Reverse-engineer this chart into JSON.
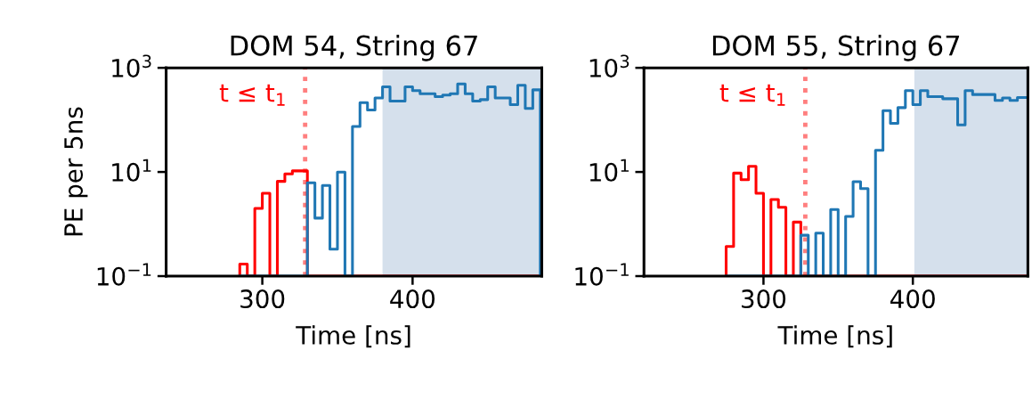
{
  "chart_data": [
    {
      "type": "histogram",
      "title": "DOM 54, String 67",
      "xlabel": "Time [ns]",
      "ylabel": "PE per 5ns",
      "log": "y",
      "xlim": [
        236,
        486
      ],
      "xticks": [
        300,
        400
      ],
      "ylim": [
        0.1,
        1000
      ],
      "yticks": [
        {
          "value": 0.1,
          "label": "10$^{−1}$"
        },
        {
          "value": 10,
          "label": "10$^{1}$"
        },
        {
          "value": 1000,
          "label": "10$^{3}$"
        }
      ],
      "bins": [
        285,
        290,
        295,
        300,
        305,
        310,
        315,
        320,
        325,
        330,
        335,
        340,
        345,
        350,
        355,
        360,
        365,
        370,
        375,
        380,
        385,
        390,
        395,
        400,
        405,
        410,
        415,
        420,
        425,
        430,
        435,
        440,
        445,
        450,
        455,
        460,
        465,
        470,
        475,
        480,
        485
      ],
      "series": [
        {
          "color": "#ff0000",
          "values": [
            0.17,
            null,
            2.0,
            3.9,
            null,
            6.6,
            9.2,
            10.5,
            10.5,
            null,
            null,
            null,
            null,
            null,
            null,
            null,
            null,
            null,
            null,
            null,
            null,
            null,
            null,
            null,
            null,
            null,
            null,
            null,
            null,
            null,
            null,
            null,
            null,
            null,
            null,
            null,
            null,
            null,
            null,
            null
          ]
        },
        {
          "color": "#1f77b4",
          "values": [
            null,
            null,
            null,
            null,
            null,
            null,
            null,
            null,
            null,
            6.2,
            1.3,
            5.5,
            0.33,
            9.9,
            null,
            75,
            215,
            155,
            263,
            432,
            230,
            230,
            432,
            365,
            319,
            319,
            280,
            300,
            319,
            492,
            319,
            230,
            245,
            432,
            263,
            263,
            196,
            461,
            166,
            378
          ]
        }
      ],
      "ref_lines": [
        {
          "axis": "x",
          "value": 328.5,
          "label": "t ≤ t$_{1}$",
          "color": "#ff7f7f",
          "line_style": "dotted"
        }
      ],
      "bands": [
        {
          "axis": "x",
          "from": 380,
          "to": 486,
          "color": "#d5e0ec"
        }
      ]
    },
    {
      "type": "histogram",
      "title": "DOM 55, String 67",
      "xlabel": "Time [ns]",
      "log": "y",
      "xlim": [
        220,
        477
      ],
      "xticks": [
        300,
        400
      ],
      "ylim": [
        0.1,
        1000
      ],
      "yticks": [
        {
          "value": 0.1,
          "label": "10$^{−1}$"
        },
        {
          "value": 10,
          "label": "10$^{1}$"
        },
        {
          "value": 1000,
          "label": "10$^{3}$"
        }
      ],
      "bins": [
        275,
        280,
        285,
        290,
        295,
        300,
        305,
        310,
        315,
        320,
        325,
        330,
        335,
        340,
        345,
        350,
        355,
        360,
        365,
        370,
        375,
        380,
        385,
        390,
        395,
        400,
        405,
        410,
        415,
        420,
        425,
        430,
        435,
        440,
        445,
        450,
        455,
        460,
        465,
        470,
        475,
        480
      ],
      "series": [
        {
          "color": "#ff0000",
          "values": [
            0.37,
            9.5,
            7.1,
            12.8,
            3.9,
            null,
            2.95,
            2.1,
            null,
            1.09,
            null,
            null,
            null,
            null,
            null,
            null,
            null,
            null,
            null,
            null,
            null,
            null,
            null,
            null,
            null,
            null,
            null,
            null,
            null,
            null,
            null,
            null,
            null,
            null,
            null,
            null,
            null,
            null,
            null,
            null,
            null
          ]
        },
        {
          "color": "#1f77b4",
          "values": [
            null,
            null,
            null,
            null,
            null,
            null,
            null,
            null,
            null,
            null,
            0.61,
            null,
            0.67,
            null,
            1.9,
            null,
            1.4,
            6.5,
            4.8,
            null,
            26,
            150,
            86,
            172,
            365,
            196,
            365,
            280,
            280,
            255,
            255,
            80,
            365,
            307,
            307,
            307,
            236,
            263,
            236,
            270,
            270
          ]
        }
      ],
      "ref_lines": [
        {
          "axis": "x",
          "value": 328,
          "label": "t ≤ t$_{1}$",
          "color": "#ff7f7f",
          "line_style": "dotted"
        }
      ],
      "bands": [
        {
          "axis": "x",
          "from": 401,
          "to": 477,
          "color": "#d5e0ec"
        }
      ]
    }
  ]
}
